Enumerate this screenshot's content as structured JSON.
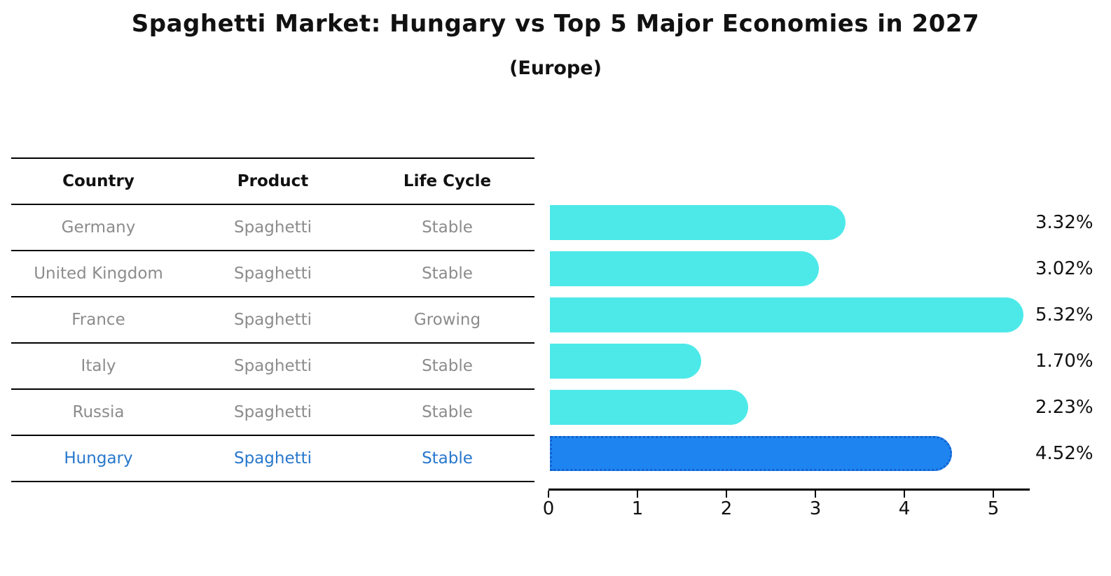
{
  "header": {
    "title": "Spaghetti Market: Hungary vs Top 5 Major Economies in 2027",
    "subtitle": "(Europe)"
  },
  "table": {
    "headers": [
      "Country",
      "Product",
      "Life Cycle"
    ],
    "rows": [
      {
        "country": "Germany",
        "product": "Spaghetti",
        "life_cycle": "Stable",
        "highlight": false
      },
      {
        "country": "United Kingdom",
        "product": "Spaghetti",
        "life_cycle": "Stable",
        "highlight": false
      },
      {
        "country": "France",
        "product": "Spaghetti",
        "life_cycle": "Growing",
        "highlight": false
      },
      {
        "country": "Italy",
        "product": "Spaghetti",
        "life_cycle": "Stable",
        "highlight": false
      },
      {
        "country": "Russia",
        "product": "Spaghetti",
        "life_cycle": "Stable",
        "highlight": false
      },
      {
        "country": "Hungary",
        "product": "Spaghetti",
        "life_cycle": "Stable",
        "highlight": true
      }
    ]
  },
  "chart_data": {
    "type": "bar",
    "orientation": "horizontal",
    "title": "Spaghetti Market: Hungary vs Top 5 Major Economies in 2027",
    "subtitle": "(Europe)",
    "categories": [
      "Germany",
      "United Kingdom",
      "France",
      "Italy",
      "Russia",
      "Hungary"
    ],
    "values": [
      3.32,
      3.02,
      5.32,
      1.7,
      2.23,
      4.52
    ],
    "value_labels": [
      "3.32%",
      "3.02%",
      "5.32%",
      "1.70%",
      "2.23%",
      "4.52%"
    ],
    "xlabel": "",
    "ylabel": "",
    "xlim": [
      0,
      5.41
    ],
    "x_ticks": [
      0,
      1,
      2,
      3,
      4,
      5
    ],
    "grid": false,
    "legend": "none",
    "bar_color": "#4DE9E9",
    "highlight_index": 5,
    "highlight_bar_color": "#1E85F0",
    "highlight_border_color": "#1361CE"
  },
  "colors": {
    "background": "#FFFFFF",
    "title_text": "#111111",
    "table_text_muted": "#8C8C8C",
    "table_highlight_text": "#2878CD",
    "table_line": "#000000",
    "axis_line": "#000000"
  }
}
